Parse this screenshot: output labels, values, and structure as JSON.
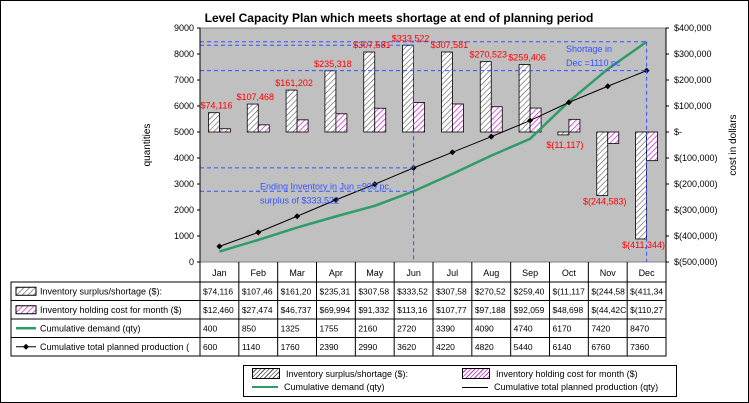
{
  "chart_data": {
    "type": "bar",
    "title": "Level Capacity Plan which meets shortage at end of planning period",
    "ylabel": "quantities",
    "y2label": "cost in dollars",
    "ylim": [
      0,
      9000
    ],
    "y2lim": [
      -500000,
      400000
    ],
    "y_ticks": [
      "0",
      "1000",
      "2000",
      "3000",
      "4000",
      "5000",
      "6000",
      "7000",
      "8000",
      "9000"
    ],
    "y2_ticks": [
      "$(500,000)",
      "$(400,000)",
      "$(300,000)",
      "$(200,000)",
      "$(100,000)",
      "$-",
      "$100,000",
      "$200,000",
      "$300,000",
      "$400,000"
    ],
    "categories": [
      "Jan",
      "Feb",
      "Mar",
      "Apr",
      "May",
      "Jun",
      "Jul",
      "Aug",
      "Sep",
      "Oct",
      "Nov",
      "Dec"
    ],
    "grid": false,
    "colors": {
      "plot_bg": "#c0c0c0",
      "demand_line": "#2e9c69",
      "production_line": "#000000",
      "annotation": "#ff0000",
      "guide": "#3355ff",
      "pink": "#cc33cc"
    },
    "series": [
      {
        "name": "Inventory surplus/shortage ($):",
        "axis": "y2",
        "kind": "bar",
        "pattern": "grey-hatch",
        "values": [
          74116,
          107468,
          161202,
          235318,
          307581,
          333522,
          307581,
          270523,
          259406,
          -11117,
          -244583,
          -411344
        ],
        "table_values": [
          "$74,116",
          "$107,46",
          "$161,20",
          "$235,31",
          "$307,58",
          "$333,52",
          "$307,58",
          "$270,52",
          "$259,40",
          "$(11,117",
          "$(244,58",
          "$(411,34"
        ],
        "labels": [
          "$74,116",
          "$107,468",
          "$161,202",
          "$235,318",
          "$307,581",
          "$333,522",
          "$307,581",
          "$270,523",
          "$259,406",
          "$(11,117)",
          "$(244,583)",
          "$(411,344)"
        ]
      },
      {
        "name": "Inventory holding cost for month ($)",
        "axis": "y2",
        "kind": "bar",
        "pattern": "pink-hatch",
        "values": [
          12460,
          27474,
          46737,
          69994,
          91332,
          113160,
          107770,
          97188,
          92059,
          48698,
          -44420,
          -110270
        ],
        "table_values": [
          "$12,460",
          "$27,474",
          "$46,737",
          "$69,994",
          "$91,332",
          "$113,16",
          "$107,77",
          "$97,188",
          "$92,059",
          "$48,698",
          "$(44,42C",
          "$(110,27"
        ]
      },
      {
        "name": "Cumulative demand (qty)",
        "axis": "y",
        "kind": "line",
        "values": [
          400,
          850,
          1325,
          1755,
          2160,
          2720,
          3390,
          4090,
          4740,
          6170,
          7420,
          8470
        ]
      },
      {
        "name": "Cumulative total planned production (qty)",
        "axis": "y",
        "kind": "line-marker",
        "values": [
          600,
          1140,
          1760,
          2390,
          2990,
          3620,
          4220,
          4820,
          5440,
          6140,
          6760,
          7360
        ]
      }
    ],
    "table_row_labels": [
      "Inventory surplus/shortage ($):",
      "Inventory holding cost for month ($)",
      "Cumulative demand (qty)",
      "Cumulative total planned production ("
    ],
    "annotations": {
      "jun": [
        "Ending Inventory in Jun =900 pc,",
        "surplus of $333,522"
      ],
      "dec": [
        "Shortage in",
        "Dec =1110 pc"
      ]
    }
  },
  "legend": {
    "surplus": "Inventory surplus/shortage ($):",
    "holding": "Inventory holding cost for month ($)",
    "demand": "Cumulative demand (qty)",
    "production": "Cumulative total planned production (qty)"
  }
}
